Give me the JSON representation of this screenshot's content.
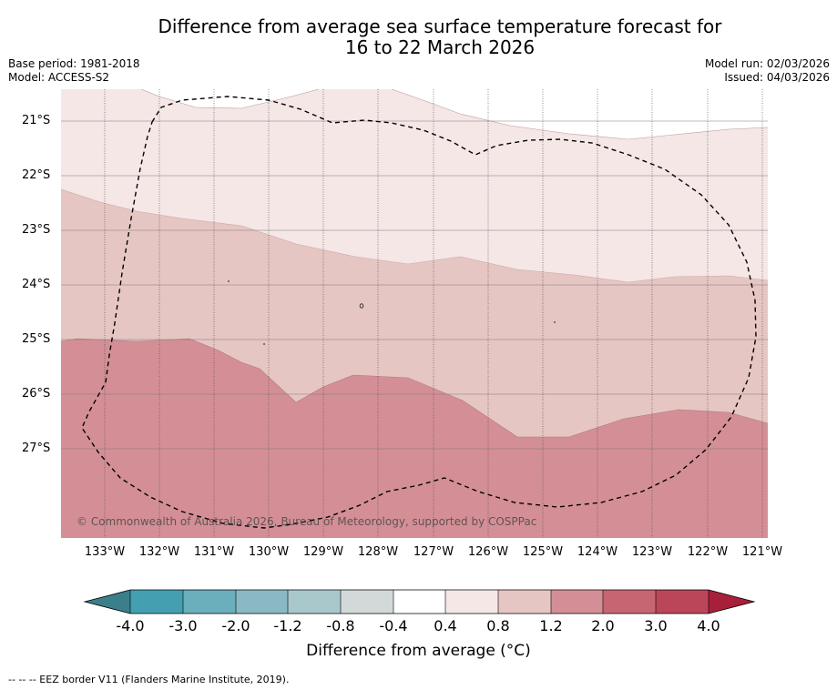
{
  "title": {
    "line1": "Difference from average sea surface temperature forecast for",
    "line2": "16 to 22 March 2026"
  },
  "meta_left": {
    "base_period": "Base period: 1981-2018",
    "model": "Model: ACCESS-S2"
  },
  "meta_right": {
    "model_run": "Model run: 02/03/2026",
    "issued": "Issued: 04/03/2026"
  },
  "latitude_labels": [
    "21°S",
    "22°S",
    "23°S",
    "24°S",
    "25°S",
    "26°S",
    "27°S"
  ],
  "longitude_labels": [
    "133°W",
    "132°W",
    "131°W",
    "130°W",
    "129°W",
    "128°W",
    "127°W",
    "126°W",
    "125°W",
    "124°W",
    "123°W",
    "122°W",
    "121°W"
  ],
  "credit": "© Commonwealth of Australia 2026, Bureau of Meteorology, supported by COSPPac",
  "colorbar": {
    "title": "Difference from average (°C)",
    "tick_labels": [
      "-4.0",
      "-3.0",
      "-2.0",
      "-1.2",
      "-0.8",
      "-0.4",
      "0.4",
      "0.8",
      "1.2",
      "2.0",
      "3.0",
      "4.0"
    ],
    "colors": {
      "below_min": "#3a7f8a",
      "bin_-4_-3": "#449fb1",
      "bin_-3_-2": "#6baebc",
      "bin_-2_-1.2": "#8ab9c4",
      "bin_-1.2_-0.8": "#a9c8cc",
      "bin_-0.8_-0.4": "#d3d9d9",
      "bin_-0.4_0.4": "#ffffff",
      "bin_0.4_0.8": "#f4e7e6",
      "bin_0.8_1.2": "#e6c6c3",
      "bin_1.2_2.0": "#d48f96",
      "bin_2.0_3.0": "#c76672",
      "bin_3.0_4.0": "#bb4659",
      "above_max": "#a81f3a"
    }
  },
  "footnote": "--  --  -- EEZ border V11 (Flanders Marine Institute, 2019)."
}
